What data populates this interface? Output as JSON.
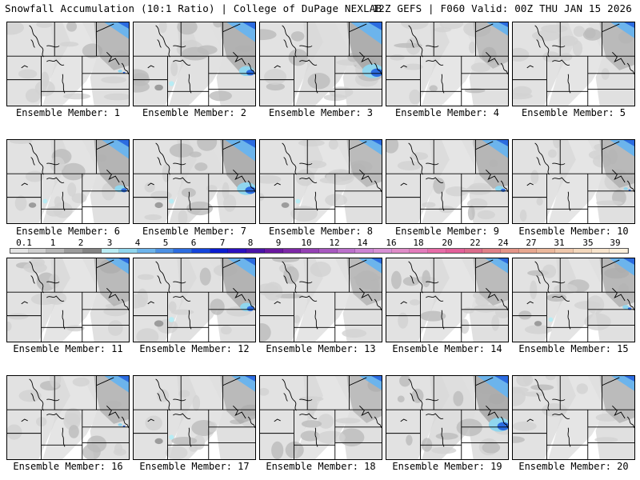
{
  "header": {
    "left": "Snowfall Accumulation (10:1 Ratio) | College of DuPage NEXLAB",
    "right": "12Z GEFS | F060 Valid: 00Z THU JAN 15 2026"
  },
  "members": [
    {
      "label": "Ensemble Member: 1",
      "intensity": 0.45,
      "east": 0.6,
      "west": 0.3
    },
    {
      "label": "Ensemble Member: 2",
      "intensity": 0.65,
      "east": 0.85,
      "west": 0.6
    },
    {
      "label": "Ensemble Member: 3",
      "intensity": 0.9,
      "east": 1.0,
      "west": 0.4
    },
    {
      "label": "Ensemble Member: 4",
      "intensity": 0.35,
      "east": 0.4,
      "west": 0.2
    },
    {
      "label": "Ensemble Member: 5",
      "intensity": 0.4,
      "east": 0.55,
      "west": 0.2
    },
    {
      "label": "Ensemble Member: 6",
      "intensity": 0.55,
      "east": 0.75,
      "west": 0.45
    },
    {
      "label": "Ensemble Member: 7",
      "intensity": 0.8,
      "east": 0.95,
      "west": 0.55
    },
    {
      "label": "Ensemble Member: 8",
      "intensity": 0.45,
      "east": 0.5,
      "west": 0.5
    },
    {
      "label": "Ensemble Member: 9",
      "intensity": 0.45,
      "east": 0.7,
      "west": 0.2
    },
    {
      "label": "Ensemble Member: 10",
      "intensity": 0.4,
      "east": 0.6,
      "west": 0.2
    },
    {
      "label": "Ensemble Member: 11",
      "intensity": 0.4,
      "east": 0.55,
      "west": 0.35
    },
    {
      "label": "Ensemble Member: 12",
      "intensity": 0.7,
      "east": 0.8,
      "west": 0.7
    },
    {
      "label": "Ensemble Member: 13",
      "intensity": 0.45,
      "east": 0.5,
      "west": 0.25
    },
    {
      "label": "Ensemble Member: 14",
      "intensity": 0.45,
      "east": 0.5,
      "west": 0.2
    },
    {
      "label": "Ensemble Member: 15",
      "intensity": 0.5,
      "east": 0.65,
      "west": 0.45
    },
    {
      "label": "Ensemble Member: 16",
      "intensity": 0.45,
      "east": 0.6,
      "west": 0.3
    },
    {
      "label": "Ensemble Member: 17",
      "intensity": 0.55,
      "east": 0.55,
      "west": 0.55
    },
    {
      "label": "Ensemble Member: 18",
      "intensity": 0.4,
      "east": 0.45,
      "west": 0.2
    },
    {
      "label": "Ensemble Member: 19",
      "intensity": 0.85,
      "east": 1.0,
      "west": 0.25
    },
    {
      "label": "Ensemble Member: 20",
      "intensity": 0.45,
      "east": 0.5,
      "west": 0.35
    }
  ],
  "legend": {
    "labels": [
      "0.1",
      "1",
      "2",
      "3",
      "4",
      "5",
      "6",
      "7",
      "8",
      "9",
      "10",
      "12",
      "14",
      "16",
      "18",
      "20",
      "22",
      "24",
      "27",
      "31",
      "35",
      "39"
    ],
    "colors": [
      "#e4e4e4",
      "#d0d0d0",
      "#b8b8b8",
      "#9c9c9c",
      "#848484",
      "#b8ecf4",
      "#90d6ee",
      "#6cb4ec",
      "#4c90e4",
      "#2c6ce0",
      "#1444dc",
      "#0a1cd0",
      "#2a10c0",
      "#4a14a8",
      "#6a18a0",
      "#7e28a8",
      "#9440b4",
      "#a858c0",
      "#bc70cc",
      "#cc84d4",
      "#d890d4",
      "#e08cc8",
      "#e47cbc",
      "#e86ca8",
      "#e4609a",
      "#dc6c8c",
      "#e08088",
      "#e49488",
      "#e8a890",
      "#ecb89c",
      "#f0c8ac",
      "#f4d8bc",
      "#f8e4cc",
      "#fcf0dc"
    ]
  }
}
